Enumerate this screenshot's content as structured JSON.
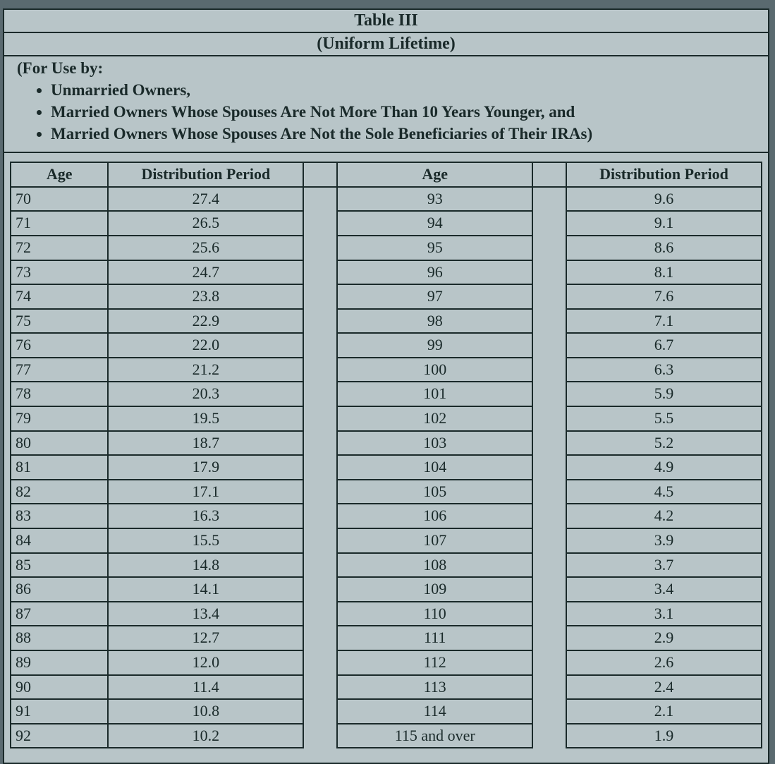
{
  "colors": {
    "page_bg": "#5a6a70",
    "paper_bg": "#b8c5c8",
    "border": "#1a2a2a",
    "text": "#1a2a2a"
  },
  "typography": {
    "family": "Times New Roman",
    "title_size_pt": 18,
    "header_size_pt": 17,
    "cell_size_pt": 16,
    "usage_size_pt": 17
  },
  "table": {
    "type": "table",
    "title": "Table III",
    "subtitle": "(Uniform Lifetime)",
    "usage_intro": "(For Use by:",
    "usage_bullets": [
      "Unmarried Owners,",
      "Married Owners Whose Spouses Are Not More Than 10 Years Younger, and",
      "Married Owners Whose Spouses Are Not the Sole Beneficiaries of Their IRAs)"
    ],
    "columns": [
      "Age",
      "Distribution Period",
      "Age",
      "Distribution Period"
    ],
    "rows": [
      [
        "70",
        "27.4",
        "93",
        "9.6"
      ],
      [
        "71",
        "26.5",
        "94",
        "9.1"
      ],
      [
        "72",
        "25.6",
        "95",
        "8.6"
      ],
      [
        "73",
        "24.7",
        "96",
        "8.1"
      ],
      [
        "74",
        "23.8",
        "97",
        "7.6"
      ],
      [
        "75",
        "22.9",
        "98",
        "7.1"
      ],
      [
        "76",
        "22.0",
        "99",
        "6.7"
      ],
      [
        "77",
        "21.2",
        "100",
        "6.3"
      ],
      [
        "78",
        "20.3",
        "101",
        "5.9"
      ],
      [
        "79",
        "19.5",
        "102",
        "5.5"
      ],
      [
        "80",
        "18.7",
        "103",
        "5.2"
      ],
      [
        "81",
        "17.9",
        "104",
        "4.9"
      ],
      [
        "82",
        "17.1",
        "105",
        "4.5"
      ],
      [
        "83",
        "16.3",
        "106",
        "4.2"
      ],
      [
        "84",
        "15.5",
        "107",
        "3.9"
      ],
      [
        "85",
        "14.8",
        "108",
        "3.7"
      ],
      [
        "86",
        "14.1",
        "109",
        "3.4"
      ],
      [
        "87",
        "13.4",
        "110",
        "3.1"
      ],
      [
        "88",
        "12.7",
        "111",
        "2.9"
      ],
      [
        "89",
        "12.0",
        "112",
        "2.6"
      ],
      [
        "90",
        "11.4",
        "113",
        "2.4"
      ],
      [
        "91",
        "10.8",
        "114",
        "2.1"
      ],
      [
        "92",
        "10.2",
        "115 and over",
        "1.9"
      ]
    ]
  }
}
